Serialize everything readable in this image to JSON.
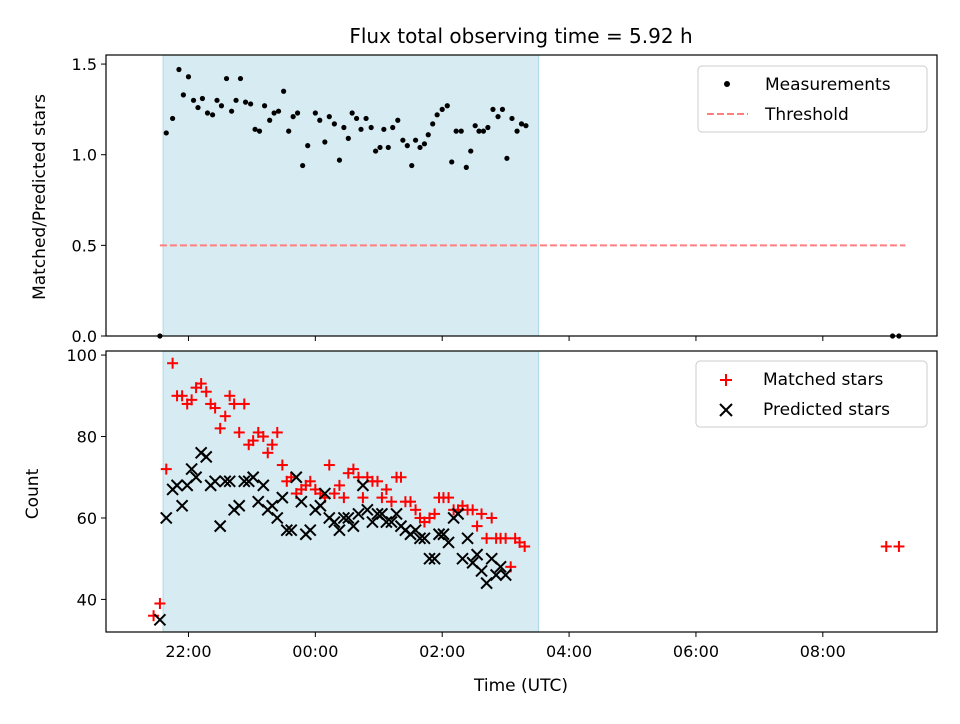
{
  "chart_data": {
    "type": "scatter",
    "title": "Flux total observing time = 5.92 h",
    "xlabel": "Time (UTC)",
    "x_tick_labels": [
      "22:00",
      "00:00",
      "02:00",
      "04:00",
      "06:00",
      "08:00"
    ],
    "x_tick_hours": [
      22,
      24,
      26,
      28,
      30,
      32
    ],
    "xlim_hours": [
      20.7,
      33.8
    ],
    "observing_window_hours": [
      21.6,
      27.52
    ],
    "colors": {
      "shade": "#add8e6",
      "threshold": "#ff7f7f",
      "matched": "#ff0000",
      "predicted": "#000000",
      "ratio": "#000000"
    },
    "panels": [
      {
        "ylabel": "Matched/Predicted stars",
        "ylim": [
          0,
          1.55
        ],
        "y_ticks": [
          0.0,
          0.5,
          1.0,
          1.5
        ],
        "y_tick_labels": [
          "0.0",
          "0.5",
          "1.0",
          "1.5"
        ],
        "legend_position": "top-right",
        "threshold": {
          "name": "Threshold",
          "value": 0.5,
          "x_range_hours": [
            21.55,
            33.3
          ]
        },
        "ratio_series": {
          "name": "Measurements",
          "points": [
            [
              21.55,
              0.0
            ],
            [
              21.65,
              1.12
            ],
            [
              21.75,
              1.2
            ],
            [
              21.85,
              1.47
            ],
            [
              21.92,
              1.33
            ],
            [
              22.0,
              1.43
            ],
            [
              22.08,
              1.3
            ],
            [
              22.15,
              1.26
            ],
            [
              22.22,
              1.31
            ],
            [
              22.3,
              1.23
            ],
            [
              22.38,
              1.22
            ],
            [
              22.45,
              1.3
            ],
            [
              22.52,
              1.27
            ],
            [
              22.6,
              1.42
            ],
            [
              22.68,
              1.24
            ],
            [
              22.75,
              1.3
            ],
            [
              22.82,
              1.42
            ],
            [
              22.9,
              1.29
            ],
            [
              22.98,
              1.28
            ],
            [
              23.05,
              1.14
            ],
            [
              23.12,
              1.13
            ],
            [
              23.2,
              1.27
            ],
            [
              23.28,
              1.19
            ],
            [
              23.35,
              1.23
            ],
            [
              23.42,
              1.24
            ],
            [
              23.5,
              1.35
            ],
            [
              23.58,
              1.13
            ],
            [
              23.65,
              1.21
            ],
            [
              23.72,
              1.23
            ],
            [
              23.8,
              0.94
            ],
            [
              23.88,
              1.05
            ],
            [
              24.0,
              1.23
            ],
            [
              24.07,
              1.19
            ],
            [
              24.15,
              1.07
            ],
            [
              24.22,
              1.21
            ],
            [
              24.3,
              1.17
            ],
            [
              24.38,
              0.97
            ],
            [
              24.45,
              1.15
            ],
            [
              24.52,
              1.09
            ],
            [
              24.58,
              1.23
            ],
            [
              24.65,
              1.2
            ],
            [
              24.72,
              1.14
            ],
            [
              24.8,
              1.2
            ],
            [
              24.88,
              1.15
            ],
            [
              24.95,
              1.02
            ],
            [
              25.02,
              1.04
            ],
            [
              25.08,
              1.14
            ],
            [
              25.15,
              1.04
            ],
            [
              25.22,
              1.15
            ],
            [
              25.3,
              1.19
            ],
            [
              25.38,
              1.08
            ],
            [
              25.45,
              1.05
            ],
            [
              25.52,
              0.94
            ],
            [
              25.58,
              1.08
            ],
            [
              25.65,
              1.04
            ],
            [
              25.72,
              1.06
            ],
            [
              25.78,
              1.11
            ],
            [
              25.85,
              1.17
            ],
            [
              25.92,
              1.22
            ],
            [
              26.0,
              1.25
            ],
            [
              26.08,
              1.27
            ],
            [
              26.15,
              0.96
            ],
            [
              26.22,
              1.13
            ],
            [
              26.3,
              1.13
            ],
            [
              26.38,
              0.93
            ],
            [
              26.45,
              1.02
            ],
            [
              26.52,
              1.16
            ],
            [
              26.58,
              1.13
            ],
            [
              26.65,
              1.13
            ],
            [
              26.72,
              1.15
            ],
            [
              26.8,
              1.25
            ],
            [
              26.88,
              1.21
            ],
            [
              26.95,
              1.25
            ],
            [
              27.02,
              0.98
            ],
            [
              27.1,
              1.2
            ],
            [
              27.18,
              1.13
            ],
            [
              27.25,
              1.17
            ],
            [
              27.32,
              1.16
            ],
            [
              33.1,
              0.0
            ],
            [
              33.2,
              0.0
            ]
          ]
        }
      },
      {
        "ylabel": "Count",
        "ylim": [
          32,
          101
        ],
        "y_ticks": [
          40,
          60,
          80,
          100
        ],
        "y_tick_labels": [
          "40",
          "60",
          "80",
          "100"
        ],
        "legend_position": "top-right",
        "series": [
          {
            "name": "Matched stars",
            "marker": "plus",
            "points": [
              [
                21.45,
                36
              ],
              [
                21.55,
                39
              ],
              [
                21.65,
                72
              ],
              [
                21.75,
                98
              ],
              [
                21.82,
                90
              ],
              [
                21.9,
                90
              ],
              [
                21.98,
                88
              ],
              [
                22.05,
                89
              ],
              [
                22.12,
                92
              ],
              [
                22.2,
                93
              ],
              [
                22.28,
                91
              ],
              [
                22.35,
                88
              ],
              [
                22.42,
                87
              ],
              [
                22.5,
                82
              ],
              [
                22.58,
                85
              ],
              [
                22.65,
                90
              ],
              [
                22.72,
                88
              ],
              [
                22.8,
                81
              ],
              [
                22.88,
                88
              ],
              [
                22.95,
                78
              ],
              [
                23.02,
                79
              ],
              [
                23.1,
                81
              ],
              [
                23.18,
                80
              ],
              [
                23.25,
                76
              ],
              [
                23.32,
                78
              ],
              [
                23.4,
                81
              ],
              [
                23.48,
                73
              ],
              [
                23.55,
                69
              ],
              [
                23.62,
                70
              ],
              [
                23.7,
                66
              ],
              [
                23.78,
                67
              ],
              [
                23.85,
                68
              ],
              [
                23.92,
                69
              ],
              [
                24.0,
                67
              ],
              [
                24.08,
                66
              ],
              [
                24.15,
                65
              ],
              [
                24.22,
                73
              ],
              [
                24.3,
                66
              ],
              [
                24.38,
                68
              ],
              [
                24.45,
                65
              ],
              [
                24.52,
                71
              ],
              [
                24.6,
                72
              ],
              [
                24.68,
                70
              ],
              [
                24.75,
                65
              ],
              [
                24.82,
                70
              ],
              [
                24.9,
                69
              ],
              [
                24.98,
                69
              ],
              [
                25.05,
                65
              ],
              [
                25.12,
                67
              ],
              [
                25.2,
                64
              ],
              [
                25.28,
                70
              ],
              [
                25.35,
                70
              ],
              [
                25.42,
                64
              ],
              [
                25.5,
                64
              ],
              [
                25.58,
                62
              ],
              [
                25.65,
                60
              ],
              [
                25.72,
                59
              ],
              [
                25.8,
                60
              ],
              [
                25.88,
                61
              ],
              [
                25.95,
                65
              ],
              [
                26.02,
                65
              ],
              [
                26.1,
                65
              ],
              [
                26.18,
                62
              ],
              [
                26.25,
                62
              ],
              [
                26.32,
                63
              ],
              [
                26.4,
                62
              ],
              [
                26.48,
                62
              ],
              [
                26.55,
                58
              ],
              [
                26.62,
                61
              ],
              [
                26.7,
                55
              ],
              [
                26.78,
                60
              ],
              [
                26.85,
                55
              ],
              [
                26.92,
                55
              ],
              [
                27.0,
                55
              ],
              [
                27.08,
                48
              ],
              [
                27.15,
                55
              ],
              [
                27.22,
                54
              ],
              [
                27.3,
                53
              ],
              [
                33.0,
                53
              ],
              [
                33.2,
                53
              ]
            ]
          },
          {
            "name": "Predicted stars",
            "marker": "x",
            "points": [
              [
                21.55,
                35
              ],
              [
                21.65,
                60
              ],
              [
                21.75,
                67
              ],
              [
                21.82,
                68
              ],
              [
                21.9,
                63
              ],
              [
                21.98,
                68
              ],
              [
                22.05,
                72
              ],
              [
                22.12,
                70
              ],
              [
                22.2,
                76
              ],
              [
                22.28,
                75
              ],
              [
                22.35,
                68
              ],
              [
                22.42,
                69
              ],
              [
                22.5,
                58
              ],
              [
                22.58,
                69
              ],
              [
                22.65,
                69
              ],
              [
                22.72,
                62
              ],
              [
                22.8,
                63
              ],
              [
                22.88,
                69
              ],
              [
                22.95,
                69
              ],
              [
                23.02,
                70
              ],
              [
                23.1,
                64
              ],
              [
                23.18,
                68
              ],
              [
                23.25,
                62
              ],
              [
                23.32,
                63
              ],
              [
                23.4,
                60
              ],
              [
                23.48,
                65
              ],
              [
                23.55,
                57
              ],
              [
                23.62,
                57
              ],
              [
                23.7,
                70
              ],
              [
                23.78,
                64
              ],
              [
                23.85,
                56
              ],
              [
                23.92,
                57
              ],
              [
                24.0,
                62
              ],
              [
                24.08,
                63
              ],
              [
                24.15,
                66
              ],
              [
                24.22,
                60
              ],
              [
                24.3,
                59
              ],
              [
                24.38,
                57
              ],
              [
                24.45,
                60
              ],
              [
                24.52,
                60
              ],
              [
                24.6,
                58
              ],
              [
                24.68,
                61
              ],
              [
                24.75,
                68
              ],
              [
                24.82,
                62
              ],
              [
                24.9,
                59
              ],
              [
                24.98,
                61
              ],
              [
                25.05,
                61
              ],
              [
                25.12,
                59
              ],
              [
                25.2,
                59
              ],
              [
                25.28,
                61
              ],
              [
                25.35,
                58
              ],
              [
                25.42,
                57
              ],
              [
                25.5,
                56
              ],
              [
                25.58,
                57
              ],
              [
                25.65,
                55
              ],
              [
                25.72,
                55
              ],
              [
                25.8,
                50
              ],
              [
                25.88,
                50
              ],
              [
                25.95,
                56
              ],
              [
                26.02,
                56
              ],
              [
                26.1,
                54
              ],
              [
                26.18,
                60
              ],
              [
                26.25,
                61
              ],
              [
                26.32,
                50
              ],
              [
                26.4,
                55
              ],
              [
                26.48,
                49
              ],
              [
                26.55,
                51
              ],
              [
                26.62,
                47
              ],
              [
                26.7,
                44
              ],
              [
                26.78,
                50
              ],
              [
                26.85,
                46
              ],
              [
                26.92,
                48
              ],
              [
                27.0,
                46
              ]
            ]
          }
        ]
      }
    ]
  }
}
